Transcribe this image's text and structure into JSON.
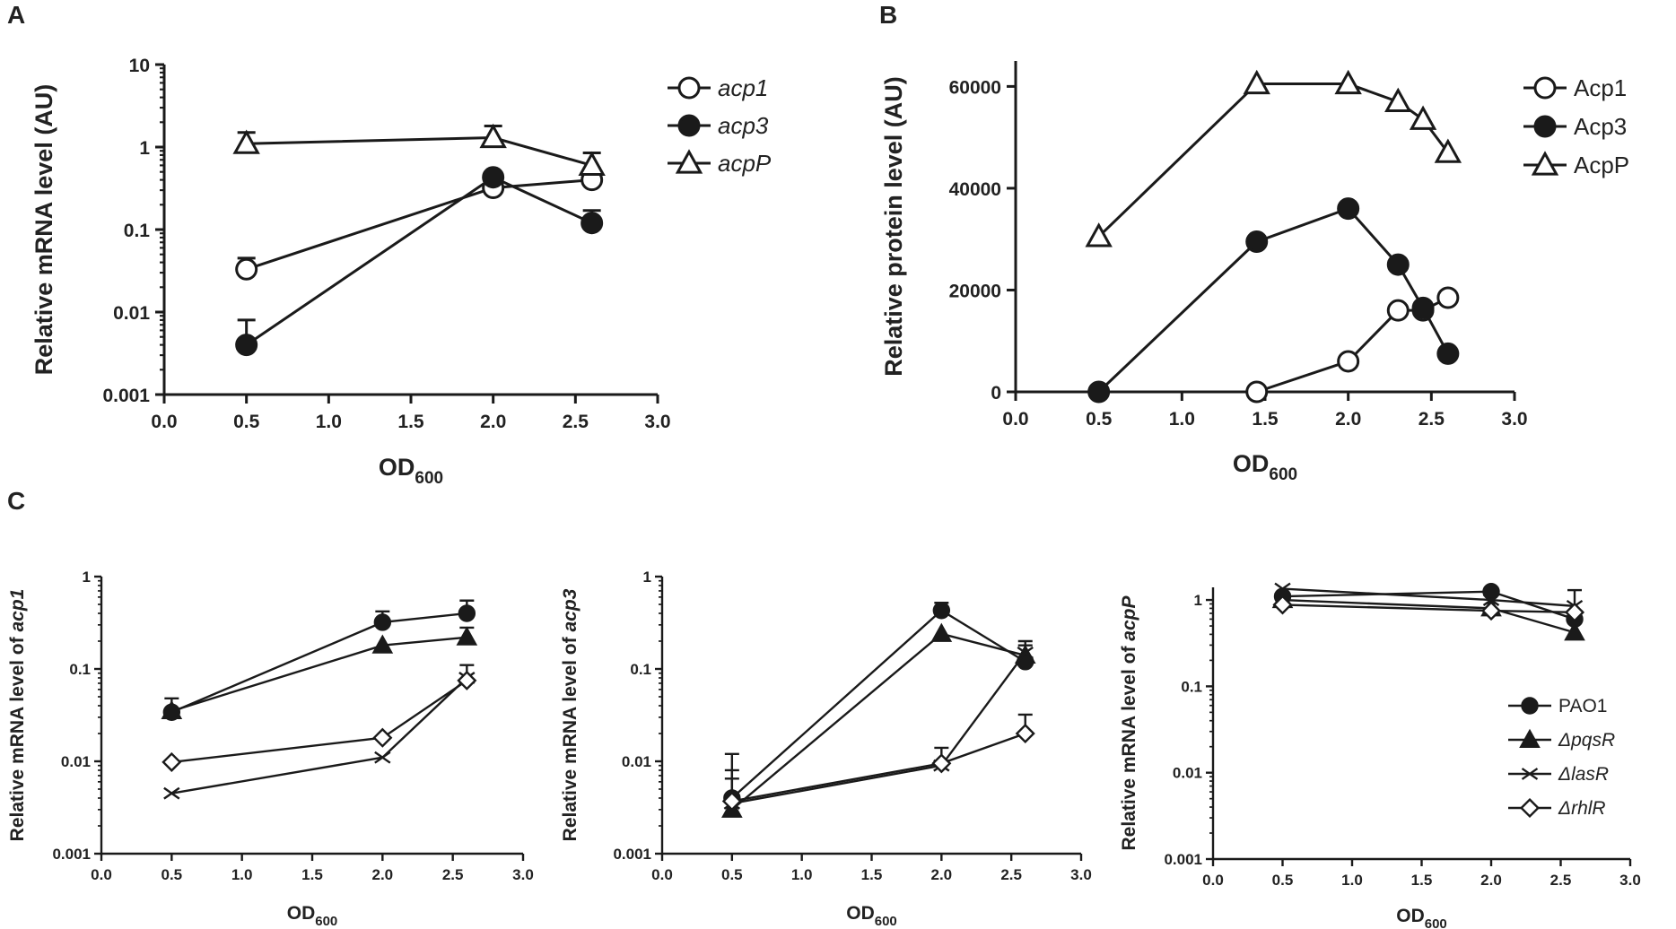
{
  "panel_labels": [
    "A",
    "B",
    "C"
  ],
  "chart_data": [
    {
      "id": "A",
      "type": "line",
      "yscale": "log",
      "ylabel": "Relative mRNA level (AU)",
      "xlabel_main": "OD",
      "xlabel_sub": "600",
      "xlim": [
        0,
        3.0
      ],
      "ylim": [
        0.001,
        10
      ],
      "xticks": [
        "0.0",
        "0.5",
        "1.0",
        "1.5",
        "2.0",
        "2.5",
        "3.0"
      ],
      "yticks": [
        "0.001",
        "0.01",
        "0.1",
        "1",
        "10"
      ],
      "legend_position": "top-right",
      "series": [
        {
          "name": "acp1",
          "italic": true,
          "marker": "circle-open",
          "x": [
            0.5,
            2.0,
            2.6
          ],
          "y": [
            0.033,
            0.32,
            0.4
          ],
          "err": [
            0.045,
            0.0,
            0.55
          ]
        },
        {
          "name": "acp3",
          "italic": true,
          "marker": "circle-filled",
          "x": [
            0.5,
            2.0,
            2.6
          ],
          "y": [
            0.004,
            0.43,
            0.12
          ],
          "err": [
            0.008,
            0.0,
            0.17
          ]
        },
        {
          "name": "acpP",
          "italic": true,
          "marker": "triangle-open",
          "x": [
            0.5,
            2.0,
            2.6
          ],
          "y": [
            1.1,
            1.3,
            0.6
          ],
          "err": [
            1.5,
            1.8,
            0.85
          ]
        }
      ]
    },
    {
      "id": "B",
      "type": "line",
      "yscale": "linear",
      "ylabel": "Relative protein level (AU)",
      "xlabel_main": "OD",
      "xlabel_sub": "600",
      "xlim": [
        0,
        3.0
      ],
      "ylim": [
        0,
        65000
      ],
      "xticks": [
        "0.0",
        "0.5",
        "1.0",
        "1.5",
        "2.0",
        "2.5",
        "3.0"
      ],
      "yticks": [
        "0",
        "20000",
        "40000",
        "60000"
      ],
      "legend_position": "top-right",
      "series": [
        {
          "name": "Acp1",
          "italic": false,
          "marker": "circle-open",
          "x": [
            1.45,
            2.0,
            2.3,
            2.45,
            2.6
          ],
          "y": [
            0,
            6000,
            16000,
            16000,
            18500
          ]
        },
        {
          "name": "Acp3",
          "italic": false,
          "marker": "circle-filled",
          "x": [
            0.5,
            1.45,
            2.0,
            2.3,
            2.45,
            2.6
          ],
          "y": [
            0,
            29500,
            36000,
            25000,
            16500,
            7500
          ]
        },
        {
          "name": "AcpP",
          "italic": false,
          "marker": "triangle-open",
          "x": [
            0.5,
            1.45,
            2.0,
            2.3,
            2.45,
            2.6
          ],
          "y": [
            30500,
            60500,
            60500,
            57000,
            53500,
            47000
          ]
        }
      ]
    },
    {
      "id": "C1",
      "type": "line",
      "yscale": "log",
      "ylabel_prefix": "Relative mRNA level of ",
      "ylabel_gene": "acp1",
      "xlabel_main": "OD",
      "xlabel_sub": "600",
      "xlim": [
        0,
        3.0
      ],
      "ylim": [
        0.001,
        1
      ],
      "xticks": [
        "0.0",
        "0.5",
        "1.0",
        "1.5",
        "2.0",
        "2.5",
        "3.0"
      ],
      "yticks": [
        "0.001",
        "0.01",
        "0.1",
        "1"
      ],
      "series": [
        {
          "name": "PAO1",
          "marker": "circle-filled",
          "x": [
            0.5,
            2.0,
            2.6
          ],
          "y": [
            0.034,
            0.32,
            0.4
          ],
          "err": [
            0.048,
            0.42,
            0.55
          ]
        },
        {
          "name": "ΔpqsR",
          "marker": "triangle-filled",
          "x": [
            0.5,
            2.0,
            2.6
          ],
          "y": [
            0.035,
            0.18,
            0.22
          ],
          "err": [
            0.0,
            0.0,
            0.28
          ]
        },
        {
          "name": "ΔlasR",
          "marker": "x",
          "x": [
            0.5,
            2.0,
            2.6
          ],
          "y": [
            0.0045,
            0.011,
            0.08
          ],
          "err": [
            0.0,
            0.0,
            0.0
          ]
        },
        {
          "name": "ΔrhlR",
          "marker": "diamond-open",
          "x": [
            0.5,
            2.0,
            2.6
          ],
          "y": [
            0.0098,
            0.018,
            0.075
          ],
          "err": [
            0.0,
            0.0,
            0.11
          ]
        }
      ]
    },
    {
      "id": "C2",
      "type": "line",
      "yscale": "log",
      "ylabel_prefix": "Relative mRNA level of ",
      "ylabel_gene": "acp3",
      "xlabel_main": "OD",
      "xlabel_sub": "600",
      "xlim": [
        0,
        3.0
      ],
      "ylim": [
        0.001,
        1
      ],
      "xticks": [
        "0.0",
        "0.5",
        "1.0",
        "1.5",
        "2.0",
        "2.5",
        "3.0"
      ],
      "yticks": [
        "0.001",
        "0.01",
        "0.1",
        "1"
      ],
      "series": [
        {
          "name": "PAO1",
          "marker": "circle-filled",
          "x": [
            0.5,
            2.0,
            2.6
          ],
          "y": [
            0.004,
            0.43,
            0.12
          ],
          "err": [
            0.012,
            0.52,
            0.0
          ]
        },
        {
          "name": "ΔpqsR",
          "marker": "triangle-filled",
          "x": [
            0.5,
            2.0,
            2.6
          ],
          "y": [
            0.003,
            0.24,
            0.14
          ],
          "err": [
            0.008,
            0.0,
            0.18
          ]
        },
        {
          "name": "ΔlasR",
          "marker": "x",
          "x": [
            0.5,
            2.0,
            2.6
          ],
          "y": [
            0.0035,
            0.009,
            0.15
          ],
          "err": [
            0.0065,
            0.0,
            0.2
          ]
        },
        {
          "name": "ΔrhlR",
          "marker": "diamond-open",
          "x": [
            0.5,
            2.0,
            2.6
          ],
          "y": [
            0.0037,
            0.0095,
            0.02
          ],
          "err": [
            0.0,
            0.014,
            0.032
          ]
        }
      ]
    },
    {
      "id": "C3",
      "type": "line",
      "yscale": "log",
      "ylabel_prefix": "Relative mRNA level of ",
      "ylabel_gene": "acpP",
      "xlabel_main": "OD",
      "xlabel_sub": "600",
      "xlim": [
        0,
        3.0
      ],
      "ylim": [
        0.001,
        1.4
      ],
      "xticks": [
        "0.0",
        "0.5",
        "1.0",
        "1.5",
        "2.0",
        "2.5",
        "3.0"
      ],
      "yticks": [
        "0.001",
        "0.01",
        "0.1",
        "1"
      ],
      "legend_position": "right",
      "series": [
        {
          "name": "PAO1",
          "italic": false,
          "marker": "circle-filled",
          "x": [
            0.5,
            2.0,
            2.6
          ],
          "y": [
            1.1,
            1.25,
            0.6
          ],
          "err": [
            0.0,
            0.0,
            0.0
          ]
        },
        {
          "name": "ΔpqsR",
          "italic": true,
          "marker": "triangle-filled",
          "x": [
            0.5,
            2.0,
            2.6
          ],
          "y": [
            1.0,
            0.8,
            0.42
          ],
          "err": [
            0.0,
            0.0,
            0.0
          ]
        },
        {
          "name": "ΔlasR",
          "italic": true,
          "marker": "x",
          "x": [
            0.5,
            2.0,
            2.6
          ],
          "y": [
            1.35,
            1.0,
            0.85
          ],
          "err": [
            0.0,
            0.0,
            1.3
          ]
        },
        {
          "name": "ΔrhlR",
          "italic": true,
          "marker": "diamond-open",
          "x": [
            0.5,
            2.0,
            2.6
          ],
          "y": [
            0.88,
            0.75,
            0.72
          ],
          "err": [
            0.0,
            0.0,
            0.0
          ]
        }
      ]
    }
  ]
}
